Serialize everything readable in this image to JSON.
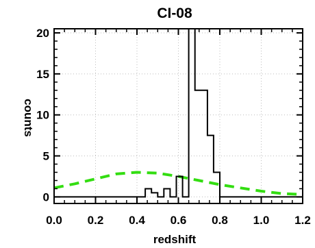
{
  "chart_data": {
    "type": "bar",
    "title": "CI-08",
    "xlabel": "redshift",
    "ylabel": "counts",
    "xlim": [
      0.0,
      1.2
    ],
    "ylim": [
      -0.8,
      20.5
    ],
    "x_ticks": [
      "0.0",
      "0.2",
      "0.4",
      "0.6",
      "0.8",
      "1.0",
      "1.2"
    ],
    "y_ticks": [
      "0",
      "5",
      "10",
      "15",
      "20"
    ],
    "grid": true,
    "series": [
      {
        "style": "histogram",
        "color": "#000000",
        "bin_edges": [
          0.0,
          0.44,
          0.47,
          0.5,
          0.53,
          0.56,
          0.59,
          0.62,
          0.65,
          0.68,
          0.71,
          0.74,
          0.77,
          0.8,
          0.83,
          1.2
        ],
        "values": [
          0,
          1,
          0.5,
          0,
          1,
          0,
          2.5,
          0,
          20.5,
          13,
          13,
          7.5,
          3,
          0,
          0
        ]
      },
      {
        "style": "dashed-curve",
        "color": "#33dd11",
        "x": [
          0.0,
          0.1,
          0.2,
          0.3,
          0.4,
          0.5,
          0.6,
          0.7,
          0.8,
          0.9,
          1.0,
          1.1,
          1.2
        ],
        "y": [
          1.1,
          1.6,
          2.2,
          2.8,
          3.0,
          2.9,
          2.5,
          2.0,
          1.5,
          1.1,
          0.7,
          0.4,
          0.3
        ]
      }
    ]
  }
}
